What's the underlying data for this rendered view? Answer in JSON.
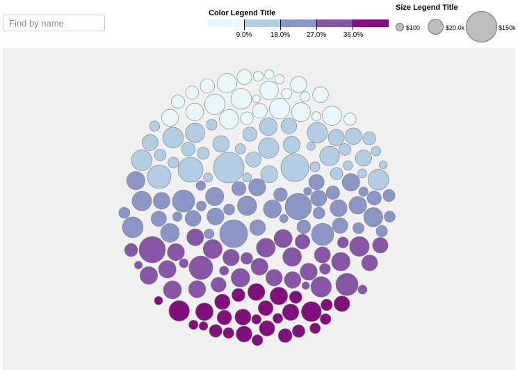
{
  "search": {
    "placeholder": "Find by name",
    "value": ""
  },
  "color_legend": {
    "title": "Color Legend Title",
    "colors": [
      "#e9f6fa",
      "#b3cde3",
      "#8c96c6",
      "#8856a7",
      "#810f7c"
    ],
    "ticks": [
      "9.0%",
      "18.0%",
      "27.0%",
      "36.0%"
    ]
  },
  "size_legend": {
    "title": "Size Legend Title",
    "items": [
      {
        "label": "$100",
        "value": 100
      },
      {
        "label": "$20.0k",
        "value": 20000
      },
      {
        "label": "$150k",
        "value": 150000
      }
    ]
  },
  "chart_data": {
    "type": "bubble",
    "layout": "packed circle",
    "colors": [
      "#e9f6fa",
      "#b3cde3",
      "#8c96c6",
      "#8856a7",
      "#810f7c"
    ],
    "background": "#f0f0f0",
    "stroke": "#7a7a7a",
    "color_domain": [
      0,
      45
    ],
    "color_thresholds": [
      9,
      18,
      27,
      36
    ],
    "size_domain": [
      100,
      150000
    ]
  }
}
